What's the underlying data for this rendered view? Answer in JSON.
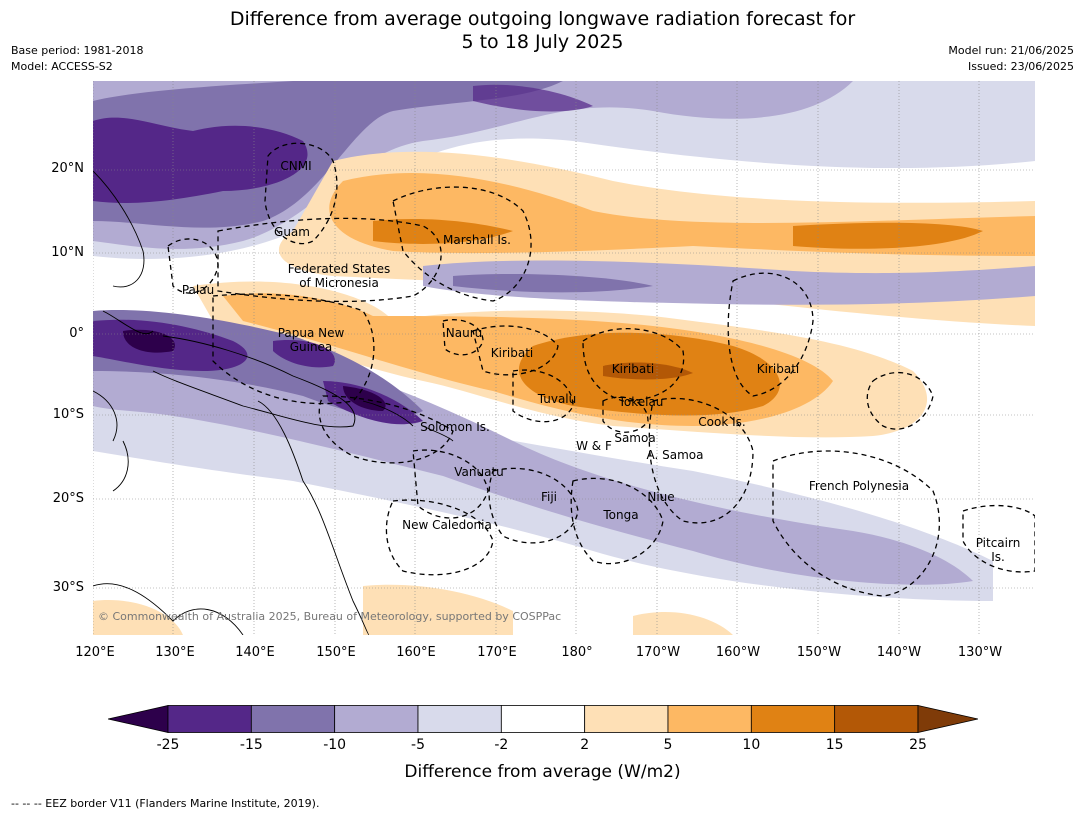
{
  "title_line1": "Difference from average outgoing longwave radiation forecast for",
  "title_line2": "5 to 18 July 2025",
  "base_period": "Base period: 1981-2018",
  "model": "Model: ACCESS-S2",
  "model_run": "Model run: 21/06/2025",
  "issued": "Issued: 23/06/2025",
  "lat_labels": [
    "20°N",
    "10°N",
    "0°",
    "10°S",
    "20°S",
    "30°S"
  ],
  "lon_labels": [
    "120°E",
    "130°E",
    "140°E",
    "150°E",
    "160°E",
    "170°E",
    "180°",
    "170°W",
    "160°W",
    "150°W",
    "140°W",
    "130°W"
  ],
  "places": {
    "cnmi": "CNMI",
    "guam": "Guam",
    "marshall": "Marshall Is.",
    "fsm1": "Federated States",
    "fsm2": "of Micronesia",
    "palau": "Palau",
    "png1": "Papua New",
    "png2": "Guinea",
    "nauru": "Nauru",
    "kiribati_w": "Kiribati",
    "kiribati_c": "Kiribati",
    "kiribati_e": "Kiribati",
    "tuvalu": "Tuvalu",
    "tokelau": "Tokelau",
    "cook": "Cook Is.",
    "solomon": "Solomon Is.",
    "samoa": "Samoa",
    "wf": "W & F",
    "asamoa": "A. Samoa",
    "vanuatu": "Vanuatu",
    "fiji": "Fiji",
    "niue": "Niue",
    "tonga": "Tonga",
    "french_polynesia": "French Polynesia",
    "new_caledonia": "New Caledonia",
    "pitcairn1": "Pitcairn",
    "pitcairn2": "Is."
  },
  "copyright": "© Commonwealth of Australia 2025, Bureau of Meteorology, supported by COSPPac",
  "colorbar": {
    "ticks": [
      "-25",
      "-15",
      "-10",
      "-5",
      "-2",
      "2",
      "5",
      "10",
      "15",
      "25"
    ],
    "colors": [
      "#2d004b",
      "#542788",
      "#8073ac",
      "#b2abd2",
      "#d8daeb",
      "#ffffff",
      "#fee0b6",
      "#fdb863",
      "#e08214",
      "#b35806",
      "#7f3b08"
    ],
    "title": "Difference from average (W/m2)"
  },
  "footnote": "--  --  -- EEZ border V11 (Flanders Marine Institute, 2019)."
}
